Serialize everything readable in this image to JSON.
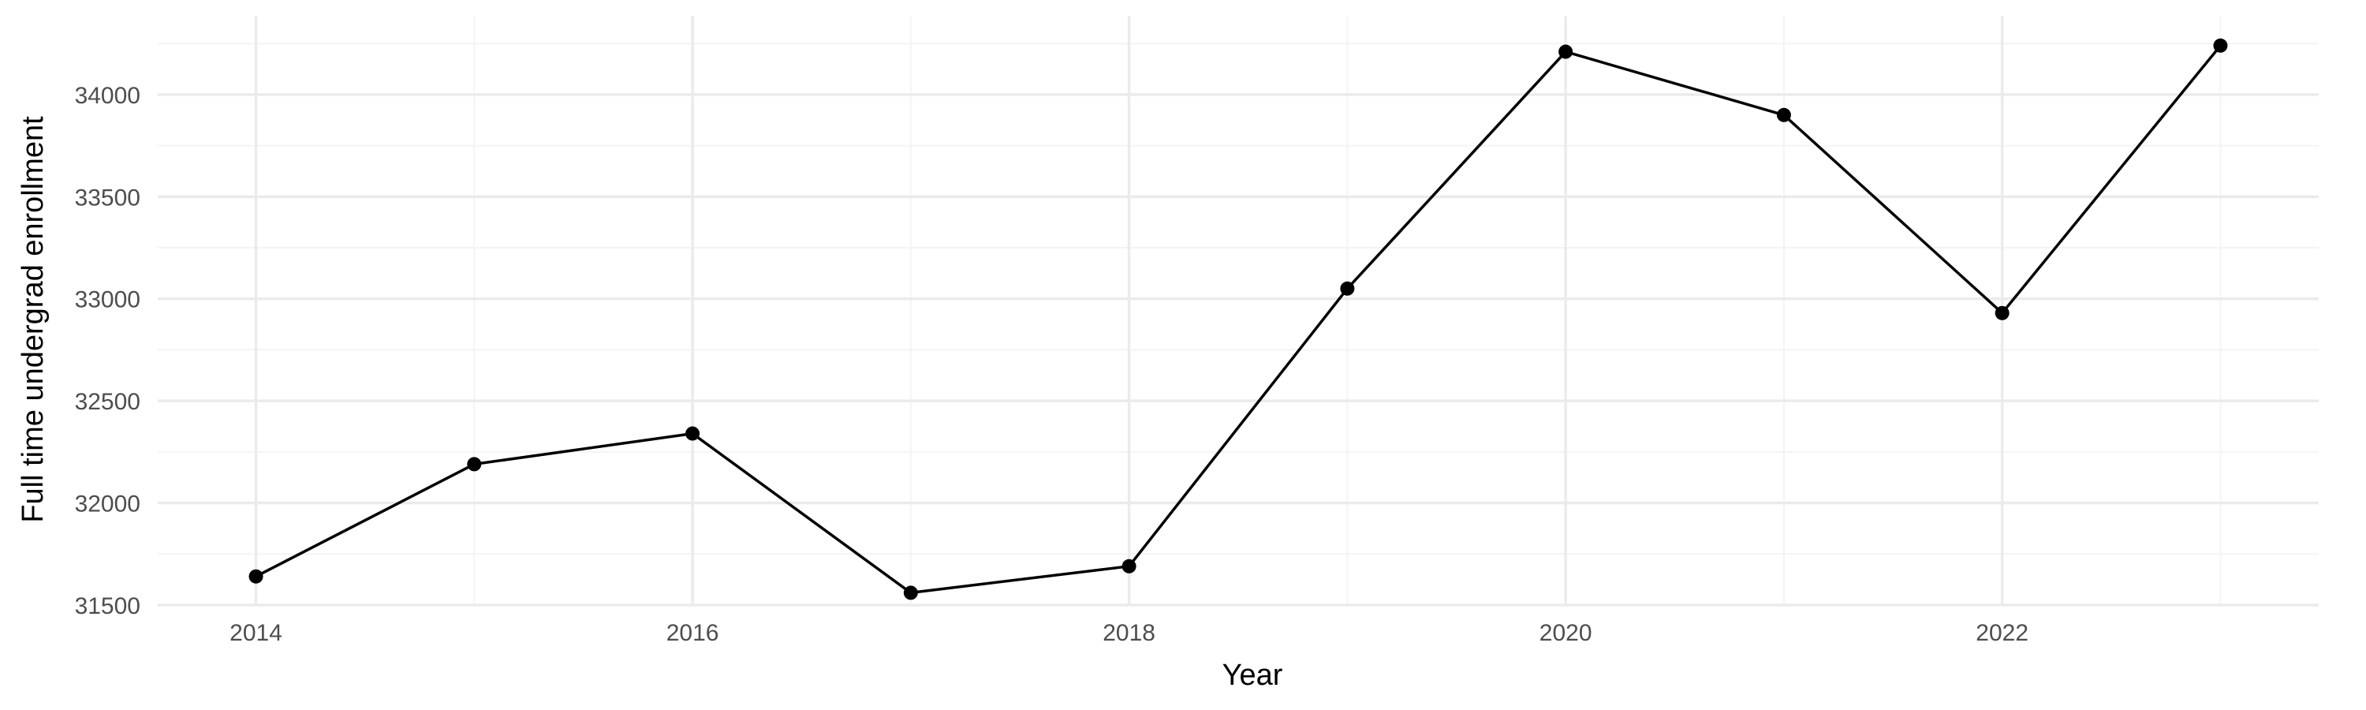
{
  "chart_data": {
    "type": "line",
    "title": "",
    "xlabel": "Year",
    "ylabel": "Full time undergrad enrollment",
    "x": [
      2014,
      2015,
      2016,
      2017,
      2018,
      2019,
      2020,
      2021,
      2022,
      2023
    ],
    "series": [
      {
        "values": [
          31640,
          32190,
          32340,
          31560,
          31690,
          33050,
          34210,
          33900,
          32930,
          34240
        ]
      }
    ],
    "xlim": [
      2013.55,
      2023.45
    ],
    "ylim": [
      31496,
      34386
    ],
    "x_ticks": [
      2014,
      2016,
      2018,
      2020,
      2022
    ],
    "x_tick_labels": [
      "2014",
      "2016",
      "2018",
      "2020",
      "2022"
    ],
    "x_minor_ticks": [
      2015,
      2017,
      2019,
      2021,
      2023
    ],
    "y_ticks": [
      31500,
      32000,
      32500,
      33000,
      33500,
      34000
    ],
    "y_tick_labels": [
      "31500",
      "32000",
      "32500",
      "33000",
      "33500",
      "34000"
    ],
    "y_minor_ticks": [
      31750,
      32250,
      32750,
      33250,
      33750,
      34250
    ],
    "grid": true,
    "legend": "none",
    "colors": {
      "line": "#000000",
      "point": "#000000",
      "grid_major": "#ebebeb",
      "grid_minor": "#f4f4f4",
      "tick_text": "#4d4d4d"
    }
  }
}
